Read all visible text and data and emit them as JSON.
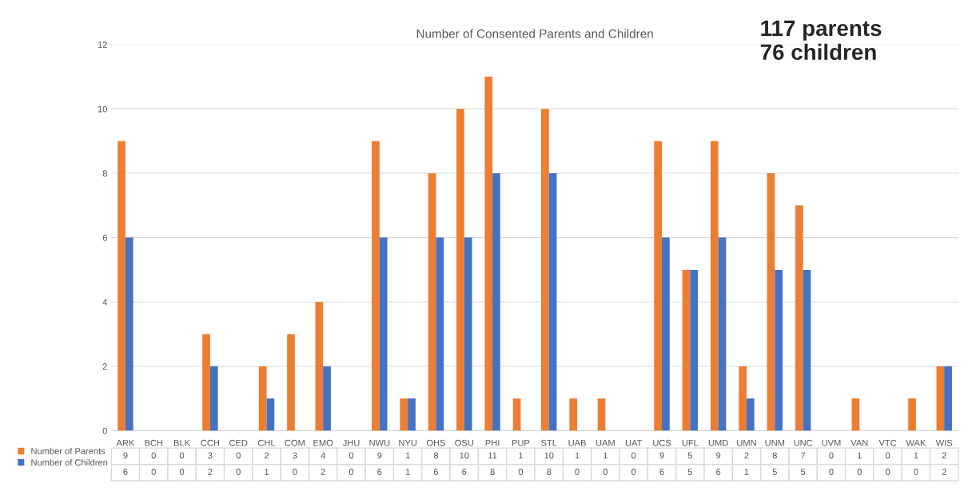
{
  "chart_data": {
    "type": "bar",
    "title": "Number of Consented Parents and Children",
    "categories": [
      "ARK",
      "BCH",
      "BLK",
      "CCH",
      "CED",
      "CHL",
      "COM",
      "EMO",
      "JHU",
      "NWU",
      "NYU",
      "OHS",
      "OSU",
      "PHI",
      "PUP",
      "STL",
      "UAB",
      "UAM",
      "UAT",
      "UCS",
      "UFL",
      "UMD",
      "UMN",
      "UNM",
      "UNC",
      "UVM",
      "VAN",
      "VTC",
      "WAK",
      "WIS"
    ],
    "series": [
      {
        "name": "Number of Parents",
        "color": "#ed7d31",
        "values": [
          9,
          0,
          0,
          3,
          0,
          2,
          3,
          4,
          0,
          9,
          1,
          8,
          10,
          11,
          1,
          10,
          1,
          1,
          0,
          9,
          5,
          9,
          2,
          8,
          7,
          0,
          1,
          0,
          1,
          2
        ]
      },
      {
        "name": "Number of Children",
        "color": "#4472c4",
        "values": [
          6,
          0,
          0,
          2,
          0,
          1,
          0,
          2,
          0,
          6,
          1,
          6,
          6,
          8,
          0,
          8,
          0,
          0,
          0,
          6,
          5,
          6,
          1,
          5,
          5,
          0,
          0,
          0,
          0,
          2
        ]
      }
    ],
    "ylim": [
      0,
      12
    ],
    "yticks": [
      0,
      2,
      4,
      6,
      8,
      10,
      12
    ],
    "grid": "y",
    "data_labels": true,
    "legend": "bottom left",
    "annotations": [
      "117 parents\n76 children"
    ]
  }
}
